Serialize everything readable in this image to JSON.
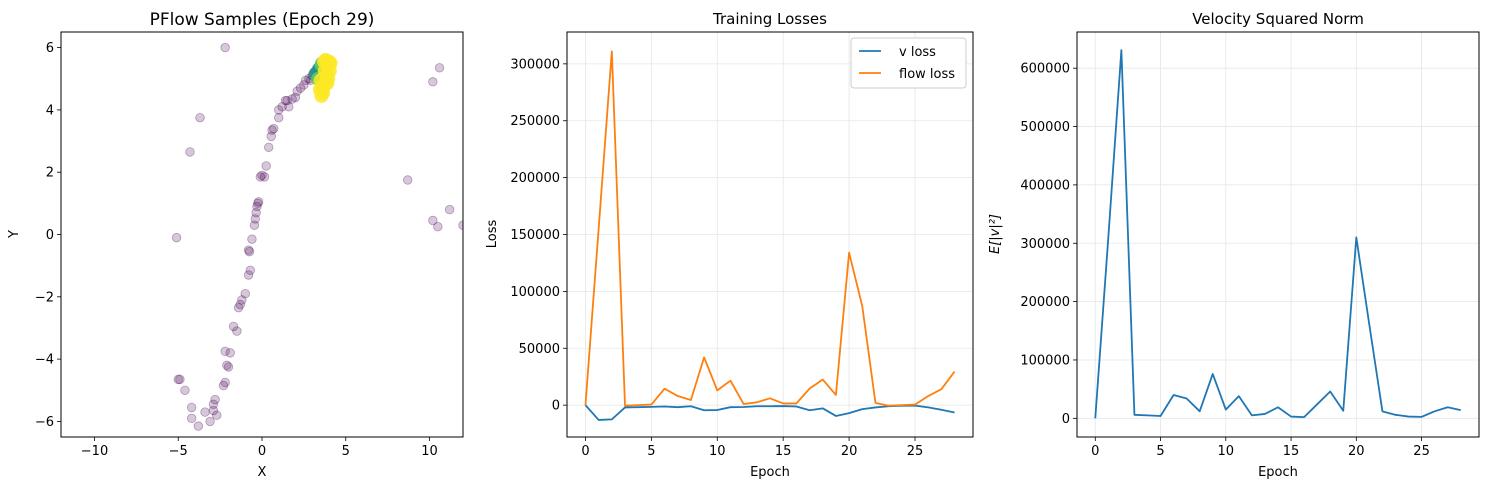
{
  "chart_data": [
    {
      "type": "scatter",
      "title": "PFlow Samples (Epoch 29)",
      "xlabel": "X",
      "ylabel": "Y",
      "xlim": [
        -12,
        12
      ],
      "ylim": [
        -6.5,
        6.5
      ],
      "xticks": [
        -10,
        -5,
        0,
        5,
        10
      ],
      "yticks": [
        -6,
        -4,
        -2,
        0,
        2,
        4,
        6
      ],
      "grid": false,
      "colormap": [
        "#440154",
        "#3b528b",
        "#21918c",
        "#5ec962",
        "#fde725"
      ],
      "sparse_points": [
        [
          -2.2,
          6.0
        ],
        [
          -3.7,
          3.75
        ],
        [
          -4.3,
          2.65
        ],
        [
          -5.1,
          -0.1
        ],
        [
          -4.9,
          -4.65
        ],
        [
          -5.0,
          -4.65
        ],
        [
          -4.6,
          -5.0
        ],
        [
          -4.2,
          -5.55
        ],
        [
          -4.2,
          -5.9
        ],
        [
          -3.8,
          -6.15
        ],
        [
          -3.4,
          -5.7
        ],
        [
          -3.1,
          -6.0
        ],
        [
          -2.9,
          -5.65
        ],
        [
          -2.8,
          -5.3
        ],
        [
          -2.9,
          -5.45
        ],
        [
          -2.7,
          -5.8
        ],
        [
          -2.3,
          -4.85
        ],
        [
          -2.2,
          -4.75
        ],
        [
          -2.1,
          -4.2
        ],
        [
          -2.2,
          -3.75
        ],
        [
          -1.9,
          -3.8
        ],
        [
          -2.0,
          -4.25
        ],
        [
          -1.7,
          -2.95
        ],
        [
          -1.5,
          -3.1
        ],
        [
          -1.4,
          -2.35
        ],
        [
          -1.3,
          -2.25
        ],
        [
          -1.2,
          -2.1
        ],
        [
          -1.0,
          -1.9
        ],
        [
          -0.8,
          -1.3
        ],
        [
          -0.7,
          -1.15
        ],
        [
          -0.8,
          -0.5
        ],
        [
          -0.75,
          -0.55
        ],
        [
          -0.6,
          -0.15
        ],
        [
          -0.45,
          0.3
        ],
        [
          -0.4,
          0.5
        ],
        [
          -0.35,
          0.7
        ],
        [
          -0.3,
          0.9
        ],
        [
          -0.2,
          1.05
        ],
        [
          -0.25,
          1.0
        ],
        [
          -0.1,
          1.85
        ],
        [
          0.0,
          1.9
        ],
        [
          0.15,
          1.85
        ],
        [
          0.25,
          2.2
        ],
        [
          0.4,
          2.8
        ],
        [
          0.55,
          3.15
        ],
        [
          0.6,
          3.35
        ],
        [
          0.7,
          3.4
        ],
        [
          1.0,
          3.75
        ],
        [
          1.0,
          4.0
        ],
        [
          1.2,
          4.1
        ],
        [
          1.4,
          4.3
        ],
        [
          1.6,
          4.1
        ],
        [
          1.5,
          4.3
        ],
        [
          1.8,
          4.35
        ],
        [
          2.0,
          4.4
        ],
        [
          2.1,
          4.6
        ],
        [
          2.3,
          4.7
        ],
        [
          2.5,
          4.8
        ],
        [
          2.6,
          4.95
        ],
        [
          2.8,
          5.0
        ],
        [
          2.9,
          4.95
        ],
        [
          3.0,
          5.1
        ],
        [
          3.1,
          5.2
        ],
        [
          3.2,
          5.25
        ],
        [
          3.3,
          5.35
        ],
        [
          3.4,
          5.4
        ],
        [
          3.5,
          5.55
        ],
        [
          8.7,
          1.75
        ],
        [
          10.2,
          4.9
        ],
        [
          10.6,
          5.35
        ],
        [
          11.2,
          0.8
        ],
        [
          10.2,
          0.45
        ],
        [
          10.5,
          0.25
        ],
        [
          12.0,
          0.3
        ]
      ],
      "dense_cluster": [
        [
          3.2,
          5.15,
          2
        ],
        [
          3.4,
          5.3,
          2
        ],
        [
          3.55,
          5.45,
          3
        ],
        [
          3.35,
          5.0,
          3
        ],
        [
          3.7,
          5.35,
          3
        ],
        [
          3.5,
          4.95,
          4
        ],
        [
          3.6,
          4.7,
          4
        ],
        [
          3.55,
          4.45,
          4
        ],
        [
          3.7,
          4.8,
          4
        ],
        [
          3.85,
          5.1,
          4
        ],
        [
          3.9,
          5.4,
          4
        ],
        [
          4.0,
          5.55,
          4
        ],
        [
          3.8,
          5.6,
          4
        ],
        [
          3.95,
          5.0,
          4
        ],
        [
          3.65,
          4.55,
          4
        ],
        [
          4.05,
          5.25,
          4
        ],
        [
          3.75,
          5.25,
          4
        ],
        [
          3.45,
          4.65,
          4
        ],
        [
          3.9,
          4.85,
          4
        ],
        [
          4.1,
          5.5,
          4
        ],
        [
          3.7,
          5.55,
          4
        ]
      ]
    },
    {
      "type": "line",
      "title": "Training Losses",
      "xlabel": "Epoch",
      "ylabel": "Loss",
      "xlim": [
        -1.4,
        29.4
      ],
      "ylim": [
        -28000,
        328000
      ],
      "xticks": [
        0,
        5,
        10,
        15,
        20,
        25
      ],
      "yticks": [
        0,
        50000,
        100000,
        150000,
        200000,
        250000,
        300000
      ],
      "ytick_labels": [
        "0",
        "50000",
        "100000",
        "150000",
        "200000",
        "250000",
        "300000"
      ],
      "grid": true,
      "legend": "top-right",
      "x": [
        0,
        1,
        2,
        3,
        4,
        5,
        6,
        7,
        8,
        9,
        10,
        11,
        12,
        13,
        14,
        15,
        16,
        17,
        18,
        19,
        20,
        21,
        22,
        23,
        24,
        25,
        26,
        27,
        28
      ],
      "series": [
        {
          "name": "v loss",
          "color": "#1f77b4",
          "values": [
            0,
            -13000,
            -12500,
            -2000,
            -1800,
            -1500,
            -1200,
            -1800,
            -1000,
            -4500,
            -4300,
            -1800,
            -1600,
            -1000,
            -1000,
            -800,
            -1200,
            -4500,
            -2800,
            -9500,
            -7000,
            -3500,
            -2000,
            -1000,
            -500,
            -400,
            -2000,
            -4000,
            -6500
          ]
        },
        {
          "name": "flow loss",
          "color": "#ff7f0e",
          "values": [
            0,
            155000,
            311000,
            -500,
            0,
            500,
            14500,
            8000,
            4500,
            42000,
            13000,
            21500,
            1000,
            2500,
            6000,
            1500,
            1500,
            14500,
            22500,
            9000,
            134000,
            87000,
            2000,
            -500,
            0,
            500,
            8000,
            14000,
            29500
          ]
        }
      ]
    },
    {
      "type": "line",
      "title": "Velocity Squared Norm",
      "xlabel": "Epoch",
      "ylabel": "E[|v|²]",
      "xlim": [
        -1.4,
        29.4
      ],
      "ylim": [
        -32000,
        662000
      ],
      "xticks": [
        0,
        5,
        10,
        15,
        20,
        25
      ],
      "yticks": [
        0,
        100000,
        200000,
        300000,
        400000,
        500000,
        600000
      ],
      "ytick_labels": [
        "0",
        "100000",
        "200000",
        "300000",
        "400000",
        "500000",
        "600000"
      ],
      "grid": true,
      "x": [
        0,
        1,
        2,
        3,
        4,
        5,
        6,
        7,
        8,
        9,
        10,
        11,
        12,
        13,
        14,
        15,
        16,
        17,
        18,
        19,
        20,
        21,
        22,
        23,
        24,
        25,
        26,
        27,
        28
      ],
      "series": [
        {
          "color": "#1f77b4",
          "values": [
            0,
            310000,
            631000,
            6000,
            5000,
            4000,
            40000,
            34000,
            12000,
            76000,
            15000,
            38000,
            5000,
            7500,
            19000,
            3000,
            2000,
            24000,
            46000,
            13000,
            310000,
            160000,
            12000,
            6000,
            3000,
            2500,
            12000,
            19000,
            14000
          ]
        }
      ]
    }
  ]
}
